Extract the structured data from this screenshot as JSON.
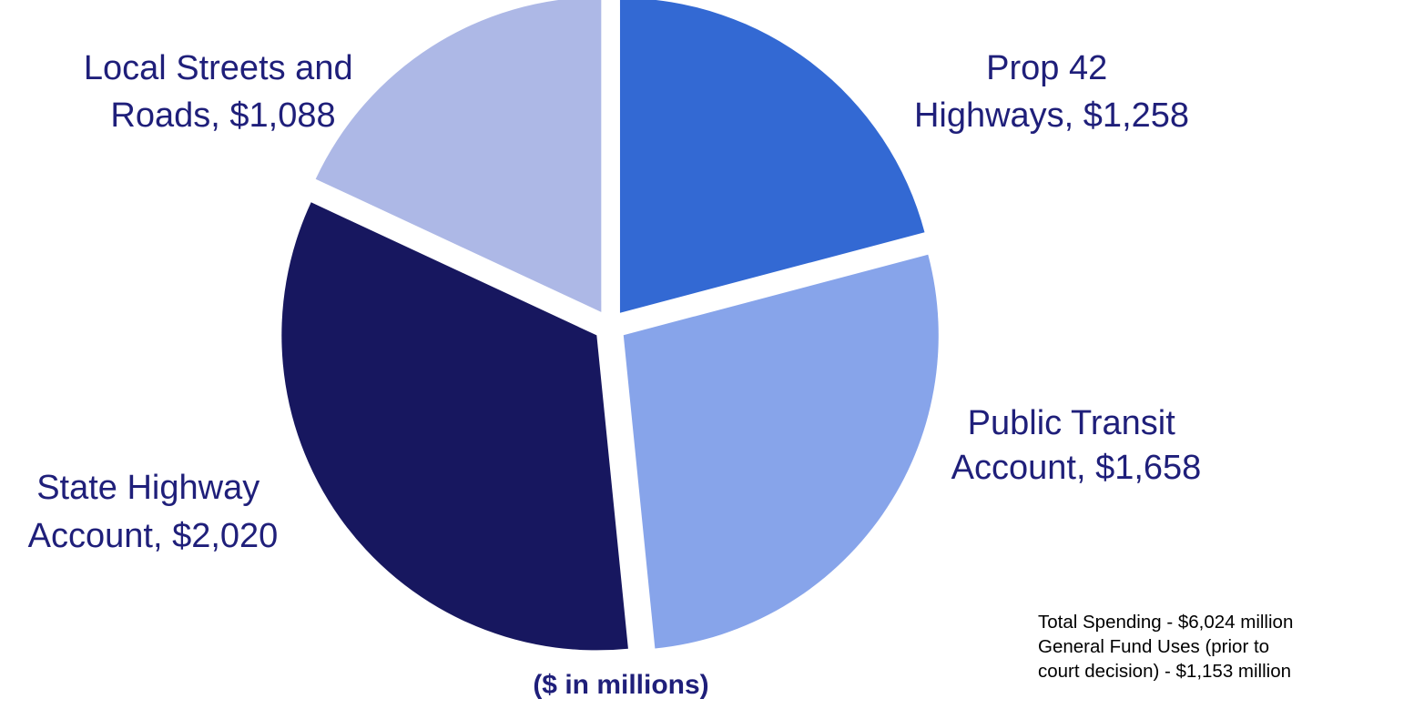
{
  "chart_data": {
    "type": "pie",
    "unit_label": "($ in millions)",
    "slices": [
      {
        "label_lines": [
          "Prop 42",
          "Highways,  $1,258"
        ],
        "value": 1258,
        "color": "#3369d3"
      },
      {
        "label_lines": [
          "Public Transit",
          "Account,  $1,658"
        ],
        "value": 1658,
        "color": "#87a4ea"
      },
      {
        "label_lines": [
          "State Highway",
          "Account,  $2,020"
        ],
        "value": 2020,
        "color": "#17175f"
      },
      {
        "label_lines": [
          "Local Streets and",
          "Roads,  $1,088"
        ],
        "value": 1088,
        "color": "#adb8e6"
      }
    ],
    "label_color": "#1f1f7a",
    "notes": [
      "Total Spending - $6,024 million",
      "General Fund Uses (prior to",
      "court decision) - $1,153 million"
    ]
  }
}
